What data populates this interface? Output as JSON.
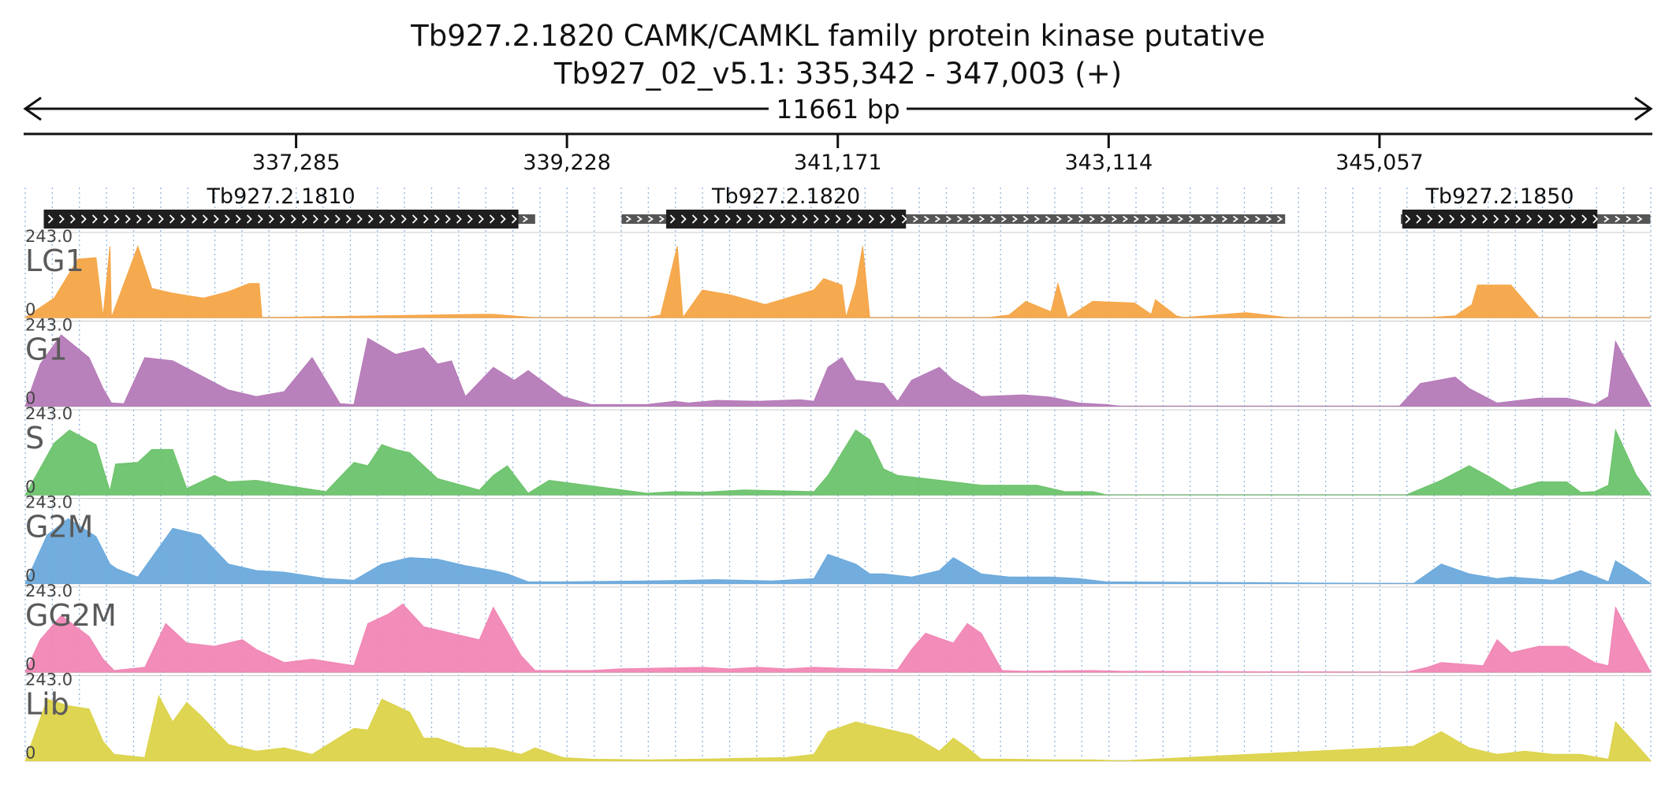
{
  "title": {
    "line1": "Tb927.2.1820  CAMK/CAMKL family protein kinase  putative",
    "line2": "Tb927_02_v5.1: 335,342 - 347,003 (+)"
  },
  "length_label": "11661 bp",
  "colors": {
    "axis": "#111111",
    "grid": "#8fb4dc",
    "cds": "#1f1f1f",
    "utr": "#555555",
    "LG1": "#f5a546",
    "G1": "#b57ab8",
    "S": "#6cc36b",
    "G2M": "#6aa9dc",
    "GG2M": "#f186b5",
    "Lib": "#dcd34a"
  },
  "chart_data": {
    "type": "area",
    "title": "Tb927.2.1820  CAMK/CAMKL family protein kinase  putative",
    "subtitle": "Tb927_02_v5.1: 335,342 - 347,003 (+)",
    "xlim": [
      335342,
      347003
    ],
    "x_tick_labels": [
      "337,285",
      "339,228",
      "341,171",
      "343,114",
      "345,057"
    ],
    "x_ticks": [
      337285,
      339228,
      341171,
      343114,
      345057
    ],
    "ylim": [
      0,
      243.0
    ],
    "y_tick_labels": [
      "243.0",
      "0"
    ],
    "grid": true,
    "genes": [
      {
        "name": "Tb927.2.1810",
        "start": 335475,
        "end": 339000,
        "cds_start": 335475,
        "cds_end": 338880
      },
      {
        "name": "Tb927.2.1820",
        "start": 339620,
        "end": 344380,
        "cds_start": 339940,
        "cds_end": 341660
      },
      {
        "name": "Tb927.2.1850",
        "start": 345210,
        "end": 347000,
        "cds_start": 345220,
        "cds_end": 346620
      }
    ],
    "series": [
      {
        "name": "LG1",
        "x": [
          335342,
          335550,
          335720,
          335850,
          335900,
          335950,
          335960,
          336150,
          336250,
          336400,
          336620,
          336800,
          336950,
          337020,
          337040,
          338600,
          338700,
          339000,
          339800,
          339900,
          340020,
          340060,
          340200,
          340400,
          340650,
          341000,
          341070,
          341200,
          341230,
          341300,
          341350,
          341400,
          342250,
          342400,
          342520,
          342700,
          342750,
          342820,
          343000,
          343300,
          343420,
          343450,
          343600,
          343650,
          344100,
          344400,
          345400,
          345600,
          345720,
          345760,
          345900,
          346000,
          346200,
          347003
        ],
        "values": [
          0,
          60,
          180,
          185,
          2,
          220,
          0,
          220,
          90,
          75,
          60,
          80,
          105,
          105,
          0,
          10,
          10,
          0,
          0,
          8,
          220,
          0,
          85,
          70,
          40,
          85,
          120,
          100,
          0,
          100,
          220,
          0,
          0,
          8,
          50,
          18,
          105,
          0,
          50,
          45,
          10,
          55,
          5,
          0,
          15,
          0,
          0,
          5,
          40,
          100,
          100,
          100,
          0,
          0
        ]
      },
      {
        "name": "G1",
        "x": [
          335342,
          335450,
          335600,
          335800,
          335900,
          335960,
          336050,
          336200,
          336400,
          336800,
          337000,
          337200,
          337400,
          337600,
          337700,
          337800,
          338000,
          338200,
          338300,
          338400,
          338500,
          338700,
          338850,
          338950,
          339200,
          339400,
          339800,
          340000,
          340100,
          340300,
          340600,
          340900,
          341000,
          341100,
          341200,
          341300,
          341500,
          341600,
          341700,
          341900,
          342000,
          342200,
          342500,
          342700,
          342900,
          343100,
          343200,
          345200,
          345350,
          345600,
          345700,
          345900,
          346200,
          346400,
          346600,
          346700,
          346750,
          346900,
          347003
        ],
        "values": [
          0,
          130,
          220,
          150,
          55,
          10,
          8,
          150,
          140,
          50,
          30,
          45,
          150,
          8,
          5,
          210,
          160,
          180,
          130,
          140,
          30,
          120,
          80,
          110,
          30,
          5,
          5,
          15,
          10,
          18,
          15,
          20,
          15,
          120,
          150,
          80,
          70,
          15,
          80,
          120,
          80,
          30,
          35,
          28,
          10,
          5,
          0,
          0,
          70,
          90,
          55,
          10,
          25,
          25,
          5,
          30,
          200,
          80,
          0
        ]
      },
      {
        "name": "S",
        "x": [
          335342,
          335550,
          335660,
          335850,
          335950,
          335990,
          336150,
          336250,
          336400,
          336500,
          336700,
          336800,
          337000,
          337200,
          337500,
          337700,
          337800,
          337900,
          338000,
          338100,
          338300,
          338600,
          338700,
          338800,
          338950,
          339100,
          339800,
          340000,
          340200,
          340500,
          341000,
          341100,
          341300,
          341400,
          341500,
          341600,
          341800,
          342000,
          342200,
          342600,
          342800,
          343000,
          343100,
          345250,
          345500,
          345700,
          345850,
          346000,
          346200,
          346400,
          346500,
          346600,
          346700,
          346750,
          346900,
          347003
        ],
        "values": [
          0,
          160,
          200,
          155,
          12,
          95,
          100,
          140,
          140,
          20,
          60,
          40,
          45,
          30,
          10,
          100,
          90,
          155,
          140,
          130,
          50,
          15,
          60,
          90,
          5,
          45,
          5,
          10,
          8,
          15,
          10,
          60,
          200,
          170,
          80,
          60,
          50,
          40,
          30,
          30,
          10,
          10,
          0,
          0,
          45,
          90,
          55,
          15,
          40,
          40,
          8,
          10,
          30,
          200,
          60,
          0
        ]
      },
      {
        "name": "G2M",
        "x": [
          335342,
          335500,
          335650,
          335850,
          335950,
          336000,
          336150,
          336300,
          336400,
          336600,
          336800,
          337000,
          337200,
          337500,
          337700,
          337900,
          338100,
          338300,
          338500,
          338700,
          338800,
          338950,
          339200,
          339800,
          340100,
          340300,
          340700,
          341000,
          341100,
          341300,
          341400,
          341500,
          341700,
          341900,
          342000,
          342200,
          342400,
          342700,
          342900,
          343100,
          345300,
          345500,
          345700,
          345900,
          346000,
          346300,
          346500,
          346700,
          346750,
          346900,
          347003
        ],
        "values": [
          0,
          150,
          200,
          145,
          60,
          45,
          20,
          110,
          170,
          150,
          60,
          40,
          35,
          15,
          10,
          60,
          80,
          75,
          55,
          40,
          30,
          5,
          5,
          8,
          10,
          12,
          8,
          15,
          90,
          60,
          30,
          30,
          20,
          40,
          80,
          30,
          20,
          20,
          15,
          5,
          0,
          60,
          30,
          15,
          20,
          10,
          40,
          5,
          70,
          30,
          0
        ]
      },
      {
        "name": "GG2M",
        "x": [
          335342,
          335450,
          335600,
          335800,
          335900,
          335980,
          336200,
          336350,
          336500,
          336700,
          336900,
          337000,
          337200,
          337400,
          337700,
          337800,
          337950,
          338050,
          338200,
          338400,
          338600,
          338700,
          338900,
          339000,
          339400,
          339600,
          339800,
          340200,
          340400,
          340600,
          340800,
          341000,
          341200,
          341400,
          341600,
          341700,
          341800,
          342000,
          342100,
          342200,
          342350,
          342500,
          343000,
          343200,
          345250,
          345400,
          345500,
          345800,
          345900,
          346000,
          346200,
          346400,
          346600,
          346700,
          346750,
          346900,
          347003
        ],
        "values": [
          0,
          100,
          175,
          110,
          40,
          5,
          15,
          150,
          90,
          80,
          100,
          70,
          30,
          40,
          20,
          150,
          180,
          210,
          140,
          120,
          100,
          200,
          50,
          5,
          5,
          10,
          12,
          15,
          10,
          15,
          10,
          15,
          12,
          10,
          8,
          70,
          120,
          90,
          150,
          120,
          5,
          3,
          5,
          3,
          0,
          15,
          30,
          20,
          100,
          60,
          80,
          80,
          30,
          20,
          200,
          80,
          0
        ]
      },
      {
        "name": "Lib",
        "x": [
          335342,
          335500,
          335650,
          335800,
          335900,
          335980,
          336200,
          336300,
          336400,
          336500,
          336600,
          336800,
          337000,
          337200,
          337400,
          337700,
          337800,
          337900,
          338000,
          338100,
          338200,
          338300,
          338500,
          338700,
          338900,
          339000,
          339200,
          339400,
          339800,
          340200,
          340500,
          340800,
          341000,
          341100,
          341300,
          341500,
          341700,
          341900,
          342000,
          342100,
          342200,
          342400,
          342700,
          343000,
          343200,
          345300,
          345500,
          345700,
          345900,
          346100,
          346300,
          346500,
          346700,
          346750,
          346900,
          347003
        ],
        "values": [
          0,
          190,
          170,
          160,
          60,
          20,
          10,
          200,
          120,
          180,
          140,
          50,
          30,
          40,
          20,
          100,
          95,
          190,
          170,
          150,
          70,
          70,
          40,
          40,
          20,
          40,
          10,
          5,
          3,
          5,
          8,
          10,
          20,
          90,
          120,
          100,
          80,
          30,
          70,
          40,
          5,
          5,
          3,
          3,
          0,
          45,
          90,
          40,
          20,
          30,
          20,
          20,
          5,
          120,
          50,
          0
        ]
      }
    ]
  }
}
